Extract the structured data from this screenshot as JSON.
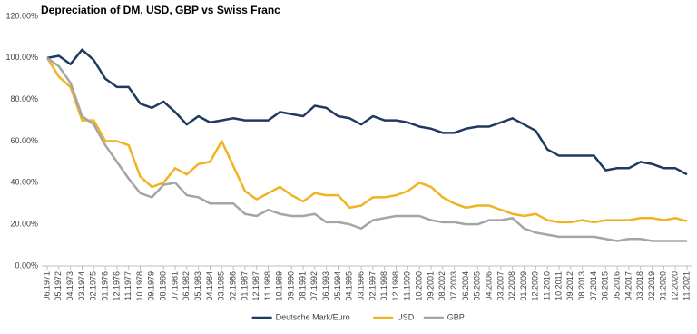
{
  "chart_data": {
    "type": "line",
    "title": "Depreciation of DM, USD, GBP vs Swiss Franc",
    "categories": [
      "06.1971",
      "05.1972",
      "04.1973",
      "03.1974",
      "02.1975",
      "01.1976",
      "12.1976",
      "11.1977",
      "10.1978",
      "09.1979",
      "08.1980",
      "07.1981",
      "06.1982",
      "05.1983",
      "04.1984",
      "03.1985",
      "02.1986",
      "01.1987",
      "12.1987",
      "11.1988",
      "10.1989",
      "09.1990",
      "08.1991",
      "07.1992",
      "06.1993",
      "05.1994",
      "04.1995",
      "03.1996",
      "02.1997",
      "01.1998",
      "12.1998",
      "11.1999",
      "10.2000",
      "09.2001",
      "08.2002",
      "07.2003",
      "06.2004",
      "05.2005",
      "04.2006",
      "03.2007",
      "02.2008",
      "01.2009",
      "12.2009",
      "11.2010",
      "10.2011",
      "09.2012",
      "08.2013",
      "07.2014",
      "06.2015",
      "05.2016",
      "04.2017",
      "03.2018",
      "02.2019",
      "01.2020",
      "12.2020",
      "11.2021"
    ],
    "series": [
      {
        "name": "Deutsche Mark/Euro",
        "color": "#1f3a5f",
        "values": [
          100,
          101,
          97,
          104,
          99,
          90,
          86,
          86,
          78,
          76,
          79,
          74,
          68,
          72,
          69,
          70,
          71,
          70,
          70,
          70,
          74,
          73,
          72,
          77,
          76,
          72,
          71,
          68,
          72,
          70,
          70,
          69,
          67,
          66,
          64,
          64,
          66,
          67,
          67,
          69,
          71,
          68,
          65,
          56,
          53,
          53,
          53,
          53,
          46,
          47,
          47,
          50,
          49,
          47,
          47,
          44
        ]
      },
      {
        "name": "USD",
        "color": "#f0b323",
        "values": [
          100,
          91,
          86,
          70,
          70,
          60,
          60,
          58,
          43,
          38,
          40,
          47,
          44,
          49,
          50,
          60,
          48,
          36,
          32,
          35,
          38,
          34,
          31,
          35,
          34,
          34,
          28,
          29,
          33,
          33,
          34,
          36,
          40,
          38,
          33,
          30,
          28,
          29,
          29,
          27,
          25,
          24,
          25,
          22,
          21,
          21,
          22,
          21,
          22,
          22,
          22,
          23,
          23,
          22,
          23,
          21.5
        ]
      },
      {
        "name": "GBP",
        "color": "#a5a5a5",
        "values": [
          100,
          96,
          88,
          72,
          68,
          58,
          50,
          42,
          35,
          33,
          39,
          40,
          34,
          33,
          30,
          30,
          30,
          25,
          24,
          27,
          25,
          24,
          24,
          25,
          21,
          21,
          20,
          18,
          22,
          23,
          24,
          24,
          24,
          22,
          21,
          21,
          20,
          20,
          22,
          22,
          23,
          18,
          16,
          15,
          14,
          14,
          14,
          14,
          13,
          12,
          13,
          13,
          12,
          12,
          12,
          12
        ]
      }
    ],
    "ylim": [
      0,
      120
    ],
    "yticks": [
      {
        "value": 0,
        "label": "0.00%"
      },
      {
        "value": 20,
        "label": "20.00%"
      },
      {
        "value": 40,
        "label": "40.00%"
      },
      {
        "value": 60,
        "label": "60.00%"
      },
      {
        "value": 80,
        "label": "80.00%"
      },
      {
        "value": 100,
        "label": "100.00%"
      },
      {
        "value": 120,
        "label": "120.00%"
      }
    ],
    "grid": false,
    "legend": "bottom"
  }
}
